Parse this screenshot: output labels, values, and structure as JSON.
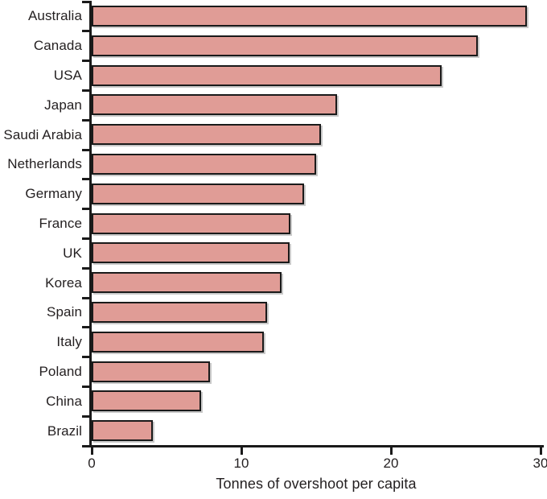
{
  "chart_data": {
    "type": "bar",
    "orientation": "horizontal",
    "title": "",
    "xlabel": "Tonnes of overshoot per capita",
    "ylabel": "",
    "categories": [
      "Australia",
      "Canada",
      "USA",
      "Japan",
      "Saudi Arabia",
      "Netherlands",
      "Germany",
      "France",
      "UK",
      "Korea",
      "Spain",
      "Italy",
      "Poland",
      "China",
      "Brazil"
    ],
    "values": [
      29.1,
      25.8,
      23.4,
      16.4,
      15.3,
      15.0,
      14.2,
      13.3,
      13.2,
      12.7,
      11.7,
      11.5,
      7.9,
      7.3,
      4.1
    ],
    "xlim": [
      0,
      30
    ],
    "xticks": [
      "0",
      "10",
      "20",
      "30"
    ],
    "grid": false,
    "legend": null,
    "bar_color": "#e09c96",
    "bar_border_color": "#1a1a1a",
    "bar_shadow_color": "#c9c9c9",
    "axis_color": "#1a1a1a",
    "text_color": "#231f20",
    "background_color": "#ffffff"
  }
}
